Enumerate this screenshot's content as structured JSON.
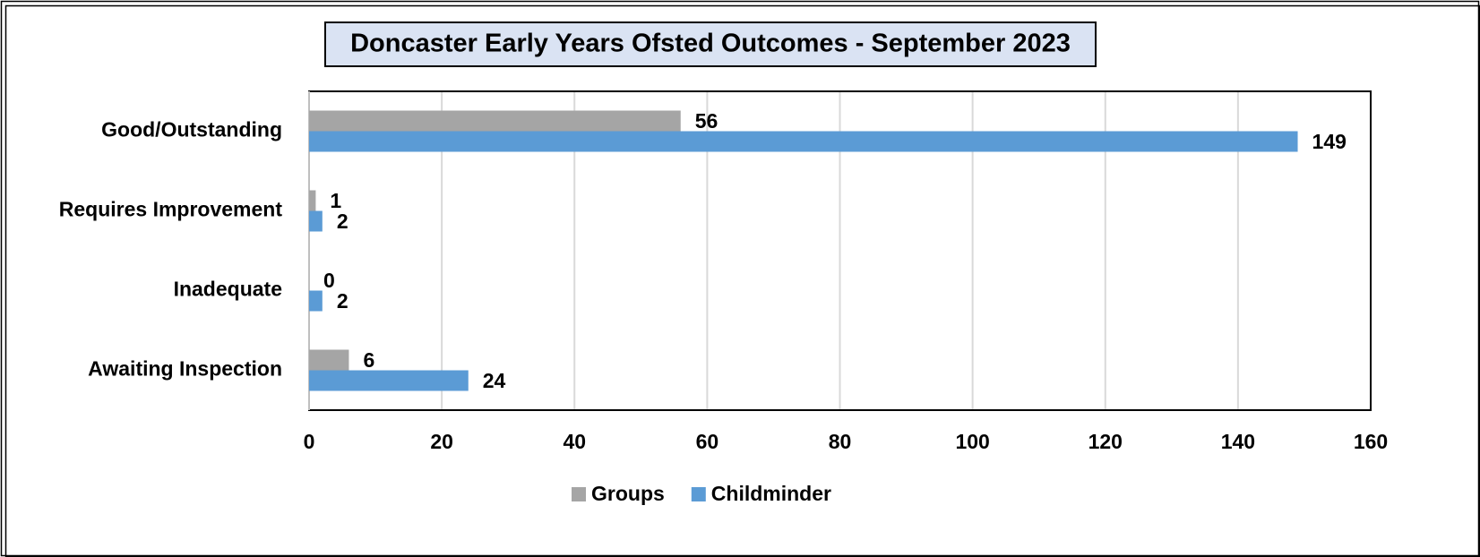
{
  "chart_data": {
    "type": "bar",
    "orientation": "horizontal",
    "title": "Doncaster Early Years Ofsted Outcomes - September 2023",
    "categories": [
      "Good/Outstanding",
      "Requires Improvement",
      "Inadequate",
      "Awaiting Inspection"
    ],
    "series": [
      {
        "name": "Groups",
        "color": "#a5a5a5",
        "values": [
          56,
          1,
          0,
          6
        ]
      },
      {
        "name": "Childminder",
        "color": "#5b9bd5",
        "values": [
          149,
          2,
          2,
          24
        ]
      }
    ],
    "xlim": [
      0,
      160
    ],
    "xticks": [
      0,
      20,
      40,
      60,
      80,
      100,
      120,
      140,
      160
    ],
    "grid": true,
    "legend": "bottom"
  }
}
